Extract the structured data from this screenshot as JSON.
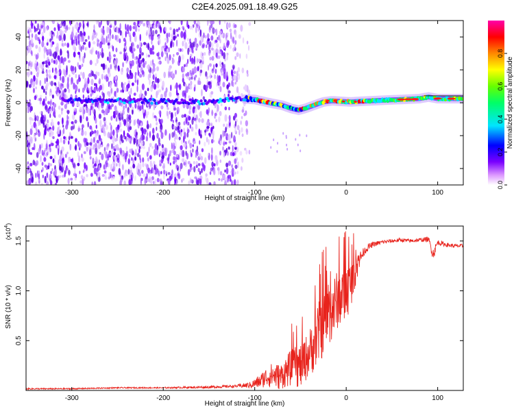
{
  "title": "C2E4.2025.091.18.49.G25",
  "chart_data": [
    {
      "type": "heatmap",
      "name": "spectrogram",
      "xlabel": "Height of straight line (km)",
      "ylabel": "Frequency (Hz)",
      "xlim": [
        -350,
        128
      ],
      "ylim": [
        -50,
        50
      ],
      "xticks": [
        -300,
        -200,
        -100,
        0,
        100
      ],
      "yticks": [
        -40,
        -20,
        0,
        20,
        40
      ],
      "colorbar": {
        "label": "Normalized spectral amplitude",
        "range": [
          0,
          1
        ],
        "ticks": [
          0.0,
          0.2,
          0.4,
          0.6,
          0.8
        ],
        "tick_labels": [
          "0.0",
          "0.2",
          "0.4",
          "0.6",
          "0.8"
        ],
        "colormap": [
          "#ffffff",
          "#cc88ff",
          "#7a00ff",
          "#0000ff",
          "#00e5ff",
          "#00ff66",
          "#66ff00",
          "#ffff00",
          "#ff8800",
          "#ff0000",
          "#ff00aa"
        ]
      },
      "carrier_track": {
        "x": [
          -310,
          -250,
          -200,
          -150,
          -120,
          -100,
          -80,
          -70,
          -60,
          -52,
          -45,
          -35,
          -25,
          -15,
          -5,
          5,
          20,
          40,
          60,
          80,
          90,
          100,
          115,
          128
        ],
        "freq": [
          1.5,
          1.2,
          0.8,
          0.5,
          2.5,
          2.0,
          -0.5,
          -1.5,
          -3.5,
          -4.5,
          -3.5,
          -1.5,
          0.5,
          1.2,
          0.8,
          0.5,
          1.0,
          1.5,
          2.0,
          2.5,
          3.5,
          2.5,
          2.5,
          2.5
        ]
      }
    },
    {
      "type": "line",
      "name": "snr",
      "xlabel": "Height of straight line (km)",
      "ylabel": "SNR (10 * v/v)",
      "scale_label": "(x10",
      "scale_exponent": "4",
      "xlim": [
        -350,
        128
      ],
      "ylim": [
        0,
        1.65
      ],
      "xticks": [
        -300,
        -200,
        -100,
        0,
        100
      ],
      "yticks": [
        0.5,
        1.0,
        1.5
      ],
      "ytick_labels": [
        "0.5",
        "1.0",
        "1.5"
      ],
      "color": "#e8231c",
      "series": [
        {
          "name": "SNR (x10^4)",
          "x": [
            -350,
            -300,
            -250,
            -200,
            -150,
            -120,
            -105,
            -95,
            -88,
            -80,
            -72,
            -65,
            -58,
            -50,
            -45,
            -40,
            -35,
            -28,
            -20,
            -15,
            -10,
            -5,
            0,
            5,
            10,
            15,
            20,
            25,
            30,
            40,
            50,
            60,
            70,
            80,
            90,
            95,
            100,
            110,
            120,
            128
          ],
          "y": [
            0.02,
            0.02,
            0.03,
            0.03,
            0.04,
            0.05,
            0.07,
            0.12,
            0.18,
            0.22,
            0.2,
            0.28,
            0.33,
            0.36,
            0.42,
            0.5,
            0.62,
            0.78,
            0.92,
            0.98,
            1.05,
            1.1,
            1.12,
            1.18,
            1.28,
            1.36,
            1.42,
            1.46,
            1.48,
            1.5,
            1.51,
            1.52,
            1.51,
            1.52,
            1.53,
            1.4,
            1.5,
            1.47,
            1.46,
            1.46
          ],
          "spread": [
            0.01,
            0.01,
            0.01,
            0.01,
            0.02,
            0.02,
            0.05,
            0.1,
            0.15,
            0.2,
            0.2,
            0.25,
            0.3,
            0.35,
            0.35,
            0.35,
            0.45,
            0.5,
            0.5,
            0.5,
            0.45,
            0.45,
            0.45,
            0.35,
            0.25,
            0.12,
            0.06,
            0.05,
            0.04,
            0.03,
            0.03,
            0.03,
            0.03,
            0.03,
            0.04,
            0.1,
            0.04,
            0.03,
            0.03,
            0.03
          ]
        }
      ]
    }
  ]
}
